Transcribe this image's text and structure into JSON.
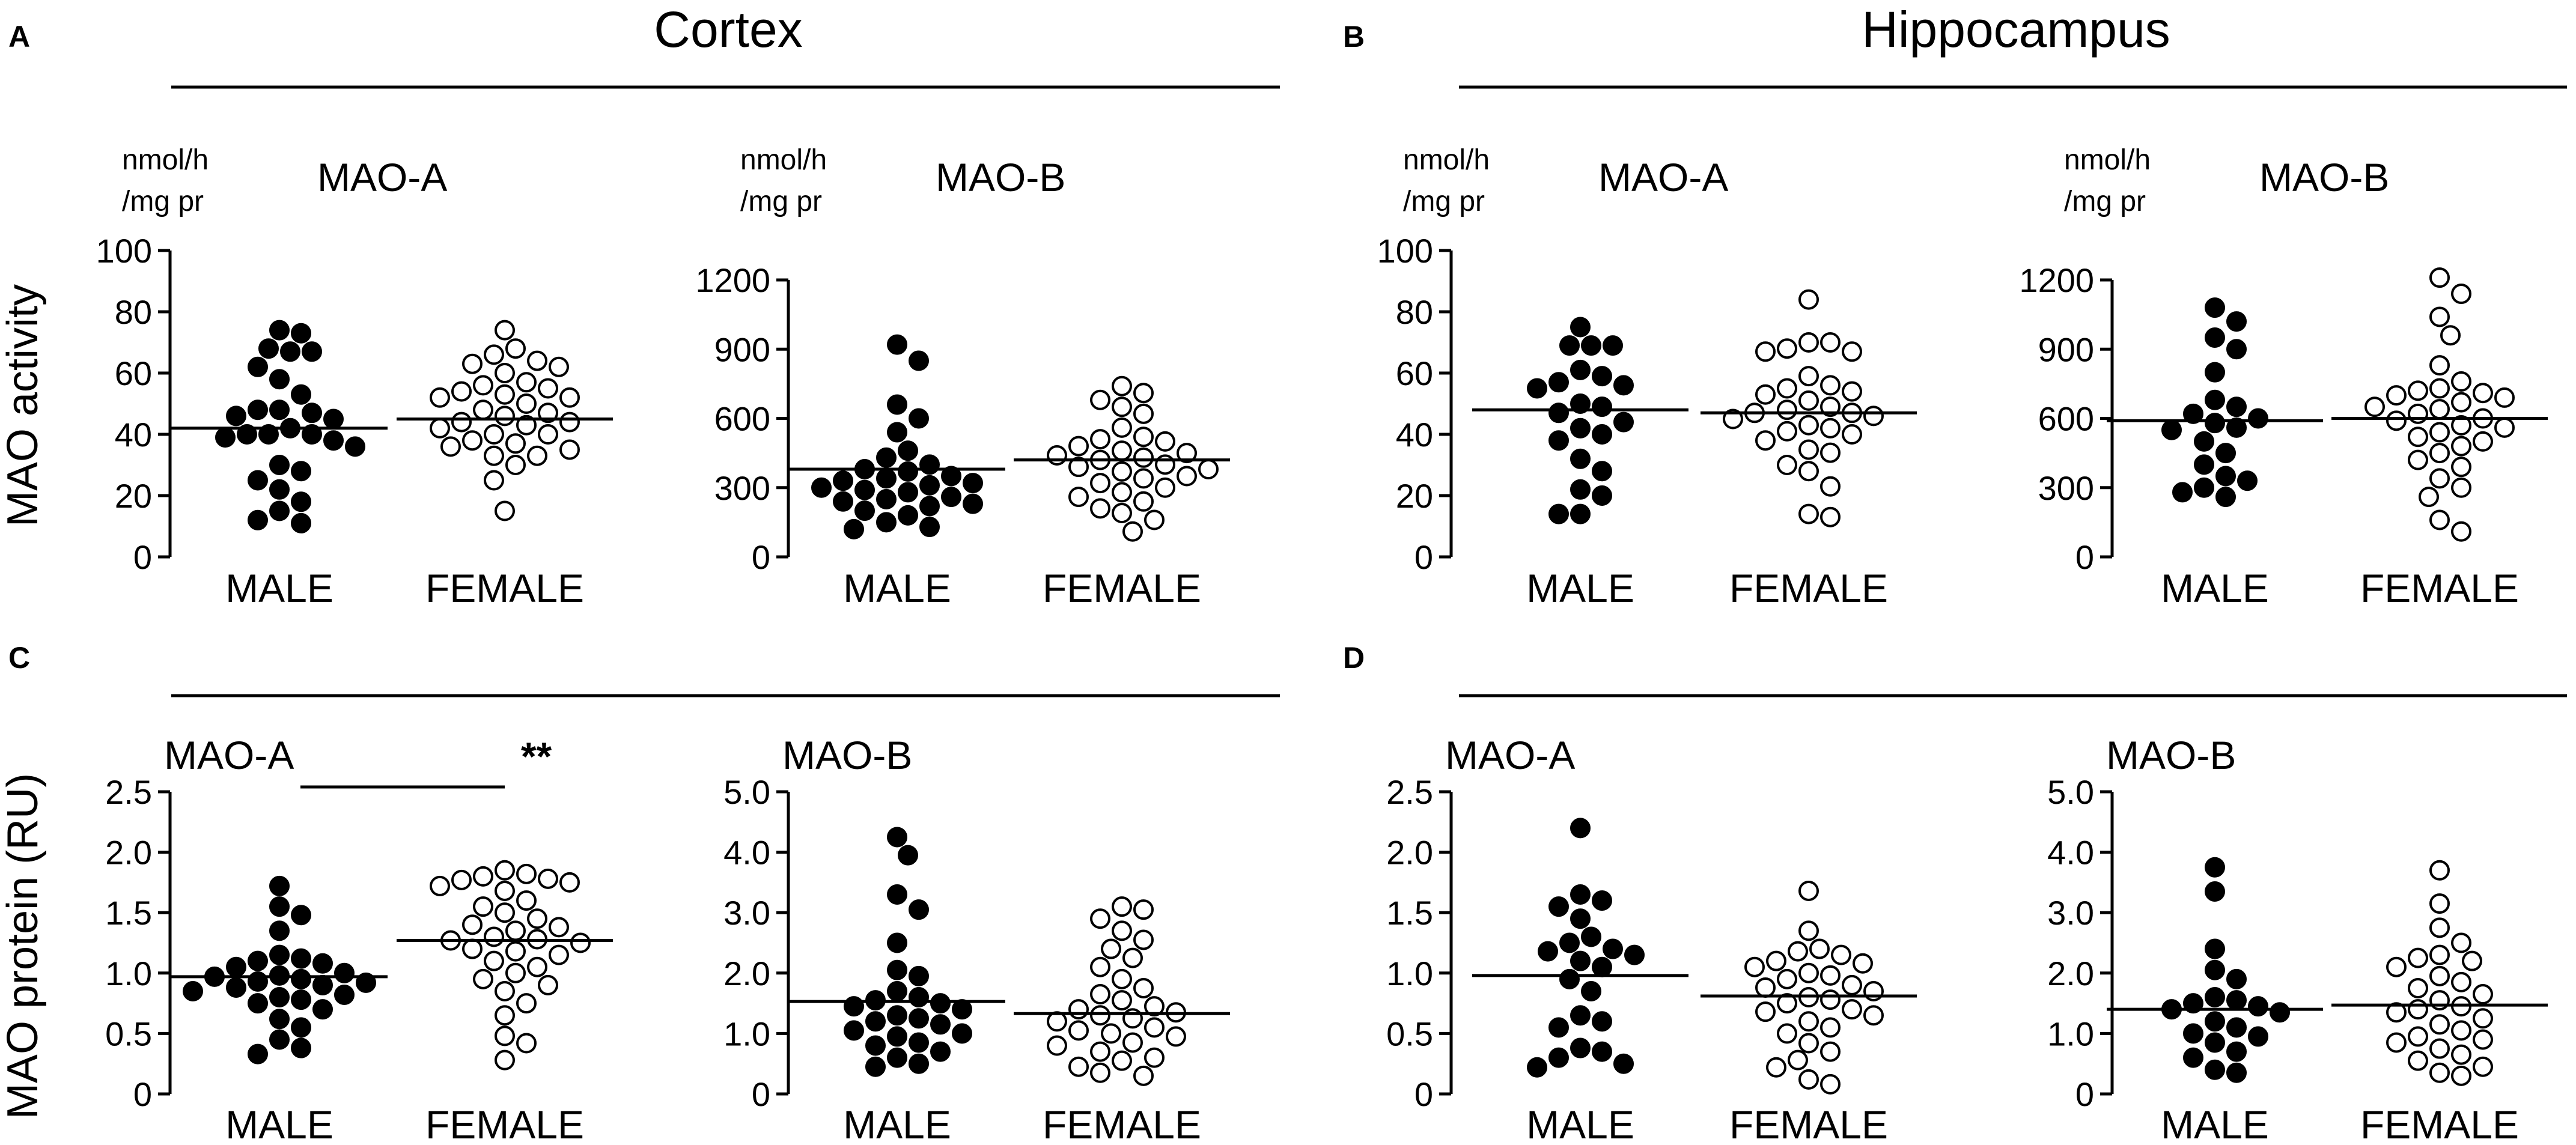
{
  "figure": {
    "y_axis_labels": {
      "activity": "MAO activity",
      "protein": "MAO protein (RU)"
    },
    "colors": {
      "male": "#000000",
      "female": "#ffffff",
      "stroke": "#000000"
    }
  },
  "sections": [
    {
      "letter": "A",
      "title": "Cortex"
    },
    {
      "letter": "B",
      "title": "Hippocampus"
    },
    {
      "letter": "C",
      "title": ""
    },
    {
      "letter": "D",
      "title": ""
    }
  ],
  "chart_data": [
    {
      "type": "scatter",
      "section": "A",
      "region": "Cortex",
      "measure": "activity",
      "title": "MAO-A",
      "unit_line1": "nmol/h",
      "unit_line2": "/mg pr",
      "categories": [
        "MALE",
        "FEMALE"
      ],
      "ylim": [
        0,
        100
      ],
      "yticks": [
        0,
        20,
        40,
        60,
        80,
        100
      ],
      "tick_labels": [
        "0",
        "20",
        "40",
        "60",
        "80",
        "100"
      ],
      "series": [
        {
          "name": "MALE",
          "fill": "filled",
          "mean": 42,
          "values": [
            73,
            74,
            67,
            68,
            67,
            58,
            62,
            53,
            48,
            45,
            46,
            48,
            47,
            40,
            40,
            38,
            36,
            40,
            42,
            39,
            30,
            25,
            28,
            22,
            15,
            12,
            11,
            18
          ]
        },
        {
          "name": "FEMALE",
          "fill": "open",
          "mean": 45,
          "values": [
            74,
            68,
            66,
            64,
            63,
            60,
            62,
            57,
            56,
            55,
            54,
            52,
            52,
            53,
            50,
            48,
            47,
            46,
            44,
            44,
            43,
            42,
            40,
            40,
            37,
            38,
            36,
            35,
            33,
            33,
            30,
            25,
            15
          ]
        }
      ],
      "significance": null
    },
    {
      "type": "scatter",
      "section": "A",
      "region": "Cortex",
      "measure": "activity",
      "title": "MAO-B",
      "unit_line1": "nmol/h",
      "unit_line2": "/mg pr",
      "categories": [
        "MALE",
        "FEMALE"
      ],
      "ylim": [
        0,
        1200
      ],
      "yticks": [
        0,
        300,
        600,
        900,
        1200
      ],
      "tick_labels": [
        "0",
        "300",
        "600",
        "900",
        "1200"
      ],
      "series": [
        {
          "name": "MALE",
          "fill": "filled",
          "mean": 380,
          "values": [
            920,
            850,
            660,
            600,
            540,
            460,
            430,
            400,
            380,
            370,
            350,
            340,
            330,
            320,
            310,
            300,
            290,
            280,
            260,
            250,
            240,
            230,
            220,
            200,
            180,
            150,
            130,
            120
          ]
        },
        {
          "name": "FEMALE",
          "fill": "open",
          "mean": 420,
          "values": [
            740,
            710,
            680,
            650,
            620,
            560,
            520,
            510,
            500,
            480,
            460,
            450,
            440,
            430,
            420,
            400,
            390,
            380,
            370,
            350,
            340,
            320,
            300,
            280,
            260,
            240,
            210,
            190,
            160,
            110
          ]
        }
      ],
      "significance": null
    },
    {
      "type": "scatter",
      "section": "B",
      "region": "Hippocampus",
      "measure": "activity",
      "title": "MAO-A",
      "unit_line1": "nmol/h",
      "unit_line2": "/mg pr",
      "categories": [
        "MALE",
        "FEMALE"
      ],
      "ylim": [
        0,
        100
      ],
      "yticks": [
        0,
        20,
        40,
        60,
        80,
        100
      ],
      "tick_labels": [
        "0",
        "20",
        "40",
        "60",
        "80",
        "100"
      ],
      "series": [
        {
          "name": "MALE",
          "fill": "filled",
          "mean": 48,
          "values": [
            75,
            69,
            69,
            69,
            61,
            59,
            57,
            56,
            55,
            50,
            49,
            47,
            44,
            42,
            40,
            38,
            32,
            28,
            22,
            20,
            14,
            14
          ]
        },
        {
          "name": "FEMALE",
          "fill": "open",
          "mean": 47,
          "values": [
            84,
            70,
            70,
            68,
            67,
            67,
            59,
            56,
            55,
            54,
            53,
            51,
            49,
            48,
            47,
            47,
            46,
            45,
            43,
            42,
            41,
            40,
            38,
            35,
            34,
            30,
            28,
            23,
            14,
            13
          ]
        }
      ],
      "significance": null
    },
    {
      "type": "scatter",
      "section": "B",
      "region": "Hippocampus",
      "measure": "activity",
      "title": "MAO-B",
      "unit_line1": "nmol/h",
      "unit_line2": "/mg pr",
      "categories": [
        "MALE",
        "FEMALE"
      ],
      "ylim": [
        0,
        1200
      ],
      "yticks": [
        0,
        300,
        600,
        900,
        1200
      ],
      "tick_labels": [
        "0",
        "300",
        "600",
        "900",
        "1200"
      ],
      "series": [
        {
          "name": "MALE",
          "fill": "filled",
          "mean": 590,
          "values": [
            1080,
            1020,
            950,
            900,
            800,
            680,
            650,
            620,
            600,
            580,
            560,
            550,
            500,
            450,
            400,
            350,
            330,
            300,
            280,
            260
          ]
        },
        {
          "name": "FEMALE",
          "fill": "open",
          "mean": 600,
          "values": [
            1210,
            1140,
            1040,
            960,
            830,
            760,
            730,
            720,
            710,
            700,
            690,
            670,
            650,
            640,
            620,
            600,
            590,
            570,
            560,
            540,
            520,
            500,
            480,
            450,
            420,
            390,
            340,
            300,
            260,
            160,
            110
          ]
        }
      ],
      "significance": null
    },
    {
      "type": "scatter",
      "section": "C",
      "region": "Cortex",
      "measure": "protein",
      "title": "MAO-A",
      "categories": [
        "MALE",
        "FEMALE"
      ],
      "ylim": [
        0,
        2.5
      ],
      "yticks": [
        0,
        0.5,
        1.0,
        1.5,
        2.0,
        2.5
      ],
      "tick_labels": [
        "0",
        "0.5",
        "1.0",
        "1.5",
        "2.0",
        "2.5"
      ],
      "series": [
        {
          "name": "MALE",
          "fill": "filled",
          "mean": 0.97,
          "values": [
            1.72,
            1.55,
            1.48,
            1.35,
            1.15,
            1.12,
            1.1,
            1.08,
            1.05,
            1.0,
            0.98,
            0.97,
            0.95,
            0.93,
            0.92,
            0.9,
            0.88,
            0.85,
            0.82,
            0.8,
            0.78,
            0.75,
            0.7,
            0.62,
            0.55,
            0.45,
            0.38,
            0.33
          ]
        },
        {
          "name": "FEMALE",
          "fill": "open",
          "mean": 1.27,
          "values": [
            1.85,
            1.82,
            1.8,
            1.78,
            1.77,
            1.75,
            1.72,
            1.68,
            1.6,
            1.55,
            1.5,
            1.45,
            1.4,
            1.38,
            1.35,
            1.3,
            1.28,
            1.27,
            1.25,
            1.2,
            1.18,
            1.15,
            1.1,
            1.05,
            1.0,
            0.95,
            0.9,
            0.85,
            0.75,
            0.65,
            0.48,
            0.42,
            0.28
          ]
        }
      ],
      "significance": {
        "label": "**"
      }
    },
    {
      "type": "scatter",
      "section": "C",
      "region": "Cortex",
      "measure": "protein",
      "title": "MAO-B",
      "categories": [
        "MALE",
        "FEMALE"
      ],
      "ylim": [
        0,
        5.0
      ],
      "yticks": [
        0,
        1.0,
        2.0,
        3.0,
        4.0,
        5.0
      ],
      "tick_labels": [
        "0",
        "1.0",
        "2.0",
        "3.0",
        "4.0",
        "5.0"
      ],
      "series": [
        {
          "name": "MALE",
          "fill": "filled",
          "mean": 1.53,
          "values": [
            4.25,
            3.95,
            3.3,
            3.05,
            2.5,
            2.05,
            1.95,
            1.7,
            1.6,
            1.55,
            1.5,
            1.45,
            1.4,
            1.3,
            1.25,
            1.2,
            1.15,
            1.05,
            1.0,
            0.95,
            0.85,
            0.8,
            0.7,
            0.6,
            0.5,
            0.45
          ]
        },
        {
          "name": "FEMALE",
          "fill": "open",
          "mean": 1.33,
          "values": [
            3.1,
            3.05,
            2.9,
            2.7,
            2.55,
            2.4,
            2.25,
            2.1,
            1.9,
            1.75,
            1.65,
            1.55,
            1.45,
            1.4,
            1.35,
            1.3,
            1.25,
            1.2,
            1.1,
            1.05,
            1.0,
            0.95,
            0.85,
            0.8,
            0.7,
            0.6,
            0.55,
            0.45,
            0.35,
            0.3
          ]
        }
      ],
      "significance": null
    },
    {
      "type": "scatter",
      "section": "D",
      "region": "Hippocampus",
      "measure": "protein",
      "title": "MAO-A",
      "categories": [
        "MALE",
        "FEMALE"
      ],
      "ylim": [
        0,
        2.5
      ],
      "yticks": [
        0,
        0.5,
        1.0,
        1.5,
        2.0,
        2.5
      ],
      "tick_labels": [
        "0",
        "0.5",
        "1.0",
        "1.5",
        "2.0",
        "2.5"
      ],
      "series": [
        {
          "name": "MALE",
          "fill": "filled",
          "mean": 0.98,
          "values": [
            2.2,
            1.65,
            1.6,
            1.55,
            1.45,
            1.3,
            1.25,
            1.2,
            1.18,
            1.15,
            1.1,
            1.05,
            0.95,
            0.85,
            0.65,
            0.6,
            0.55,
            0.38,
            0.35,
            0.3,
            0.25,
            0.22
          ]
        },
        {
          "name": "FEMALE",
          "fill": "open",
          "mean": 0.81,
          "values": [
            1.68,
            1.35,
            1.2,
            1.18,
            1.15,
            1.1,
            1.08,
            1.05,
            1.0,
            0.98,
            0.95,
            0.9,
            0.88,
            0.85,
            0.8,
            0.78,
            0.75,
            0.7,
            0.68,
            0.65,
            0.6,
            0.55,
            0.5,
            0.42,
            0.35,
            0.28,
            0.22,
            0.12,
            0.08
          ]
        }
      ],
      "significance": null
    },
    {
      "type": "scatter",
      "section": "D",
      "region": "Hippocampus",
      "measure": "protein",
      "title": "MAO-B",
      "categories": [
        "MALE",
        "FEMALE"
      ],
      "ylim": [
        0,
        5.0
      ],
      "yticks": [
        0,
        1.0,
        2.0,
        3.0,
        4.0,
        5.0
      ],
      "tick_labels": [
        "0",
        "1.0",
        "2.0",
        "3.0",
        "4.0",
        "5.0"
      ],
      "series": [
        {
          "name": "MALE",
          "fill": "filled",
          "mean": 1.4,
          "values": [
            3.75,
            3.35,
            2.4,
            2.05,
            1.9,
            1.6,
            1.55,
            1.5,
            1.45,
            1.4,
            1.35,
            1.2,
            1.1,
            1.0,
            0.95,
            0.85,
            0.7,
            0.6,
            0.4,
            0.35
          ]
        },
        {
          "name": "FEMALE",
          "fill": "open",
          "mean": 1.47,
          "values": [
            3.7,
            3.15,
            2.75,
            2.5,
            2.3,
            2.25,
            2.2,
            2.1,
            1.95,
            1.85,
            1.75,
            1.65,
            1.55,
            1.45,
            1.4,
            1.35,
            1.25,
            1.15,
            1.05,
            0.95,
            0.9,
            0.85,
            0.75,
            0.65,
            0.55,
            0.45,
            0.35,
            0.3
          ]
        }
      ],
      "significance": null
    }
  ]
}
